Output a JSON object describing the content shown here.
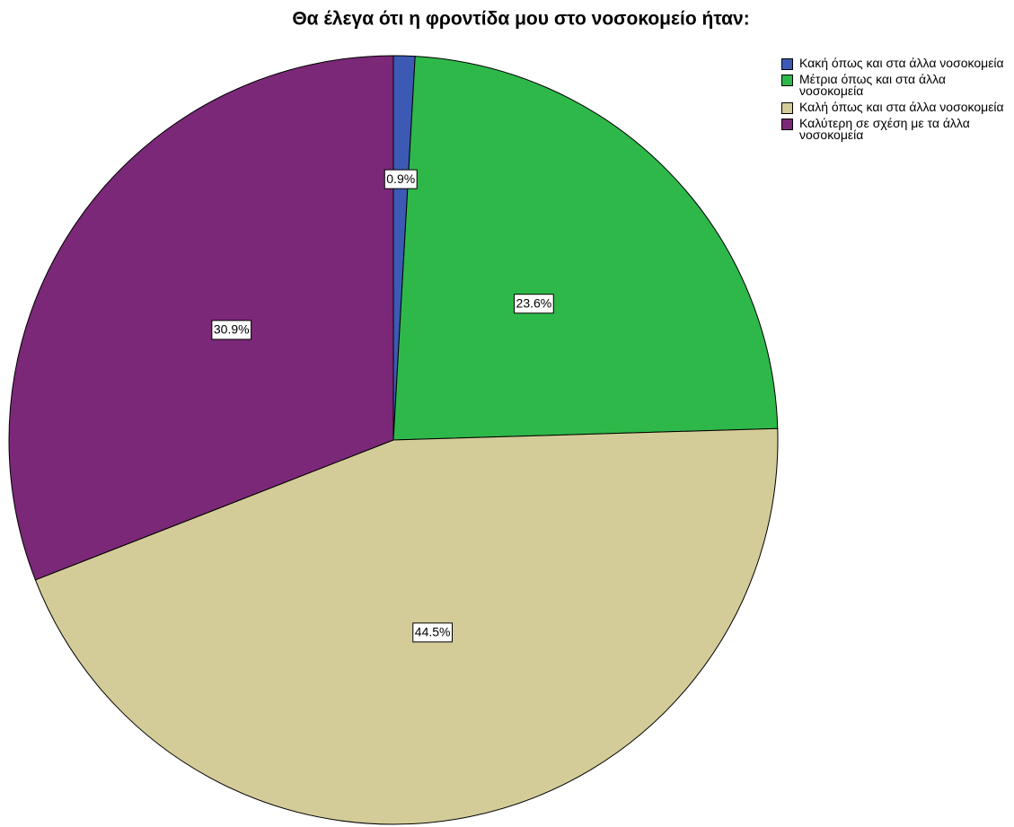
{
  "chart_data": {
    "type": "pie",
    "title": "Θα έλεγα ότι η φροντίδα μου στο νοσοκομείο ήταν:",
    "categories": [
      "Κακή όπως και στα άλλα νοσοκομεία",
      "Μέτρια όπως και στα άλλα νοσοκομεία",
      "Καλή όπως και στα άλλα νοσοκομεία",
      "Καλύτερη σε σχέση με τα άλλα νοσοκομεία"
    ],
    "values": [
      0.9,
      23.6,
      44.5,
      30.9
    ],
    "value_labels": [
      "0.9%",
      "23.6%",
      "44.5%",
      "30.9%"
    ],
    "colors": [
      "#3c5ab4",
      "#2fb84a",
      "#d4cc98",
      "#7b2878"
    ],
    "legend": "top-right"
  }
}
